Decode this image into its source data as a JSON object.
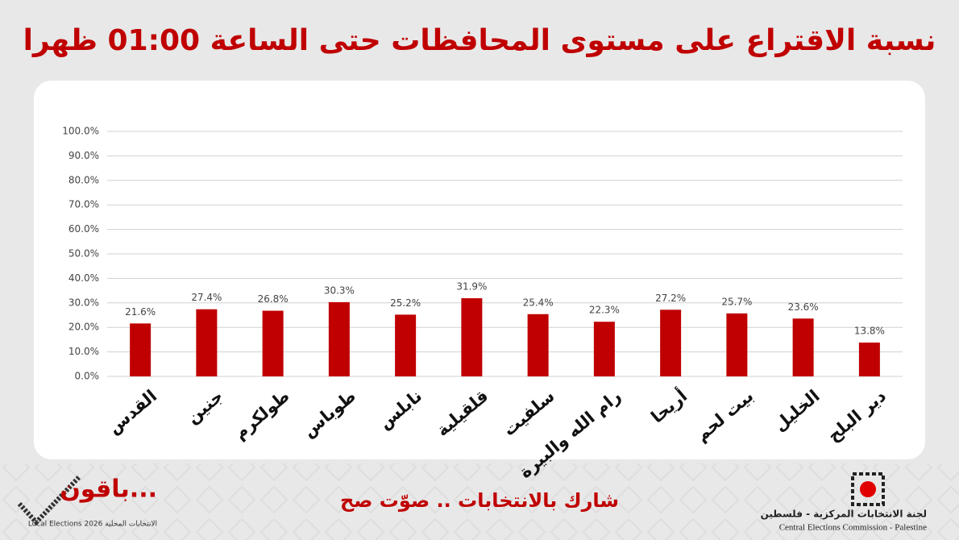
{
  "chart_data": {
    "type": "bar",
    "title": "نسبة الاقتراع على مستوى المحافظات حتى الساعة 01:00 ظهرا",
    "categories": [
      "القدس",
      "جنين",
      "طولكرم",
      "طوباس",
      "نابلس",
      "قلقيلية",
      "سلفيت",
      "رام الله والبيرة",
      "أريحا",
      "بيت لحم",
      "الخليل",
      "دير البلح"
    ],
    "values": [
      21.6,
      27.4,
      26.8,
      30.3,
      25.2,
      31.9,
      25.4,
      22.3,
      27.2,
      25.7,
      23.6,
      13.8
    ],
    "value_labels": [
      "21.6%",
      "27.4%",
      "26.8%",
      "30.3%",
      "25.2%",
      "31.9%",
      "25.4%",
      "22.3%",
      "27.2%",
      "25.7%",
      "23.6%",
      "13.8%"
    ],
    "color": "#c00000",
    "ylim": [
      0,
      100
    ],
    "yticks": [
      {
        "value": 0,
        "label": "0.0%"
      },
      {
        "value": 10,
        "label": "10.0%"
      },
      {
        "value": 20,
        "label": "20.0%"
      },
      {
        "value": 30,
        "label": "30.0%"
      },
      {
        "value": 40,
        "label": "40.0%"
      },
      {
        "value": 50,
        "label": "50.0%"
      },
      {
        "value": 60,
        "label": "60.0%"
      },
      {
        "value": 70,
        "label": "70.0%"
      },
      {
        "value": 80,
        "label": "80.0%"
      },
      {
        "value": 90,
        "label": "90.0%"
      },
      {
        "value": 100,
        "label": "100.0%"
      }
    ],
    "grid": true
  },
  "footer": {
    "slogan": "شارك بالانتخابات .. صوّت صح",
    "campaign": "باقون...",
    "campaign_sub": "Local Elections 2026 الانتخابات المحلية",
    "org_ar": "لجنة الانتخابات المركزية - فلسطين",
    "org_en": "Central Elections Commission - Palestine"
  }
}
